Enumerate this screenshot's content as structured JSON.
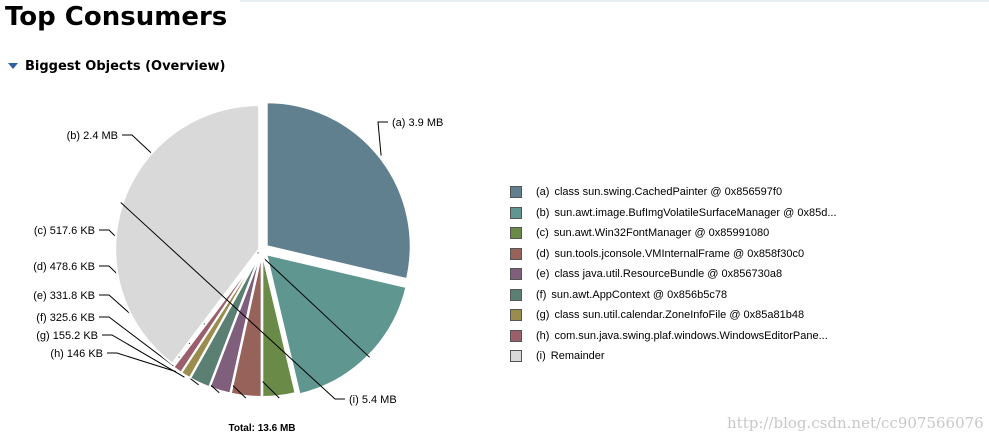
{
  "page": {
    "title": "Top Consumers"
  },
  "section": {
    "title": "Biggest Objects (Overview)"
  },
  "chart_data": {
    "type": "pie",
    "total": "Total: 13.6 MB",
    "slices": [
      {
        "id": "(a)",
        "label": "3.9 MB",
        "value": 3.9,
        "legend": "class sun.swing.CachedPainter @ 0x856597f0",
        "color": "#61808f"
      },
      {
        "id": "(b)",
        "label": "2.4 MB",
        "value": 2.4,
        "legend": "sun.awt.image.BufImgVolatileSurfaceManager @ 0x85d...",
        "color": "#5f9690"
      },
      {
        "id": "(c)",
        "label": "517.6 KB",
        "value": 0.5055,
        "legend": "sun.awt.Win32FontManager @ 0x85991080",
        "color": "#6a8a47"
      },
      {
        "id": "(d)",
        "label": "478.6 KB",
        "value": 0.4674,
        "legend": "sun.tools.jconsole.VMInternalFrame @ 0x858f30c0",
        "color": "#97625a"
      },
      {
        "id": "(e)",
        "label": "331.8 KB",
        "value": 0.324,
        "legend": "class java.util.ResourceBundle @ 0x856730a8",
        "color": "#805f7c"
      },
      {
        "id": "(f)",
        "label": "325.6 KB",
        "value": 0.318,
        "legend": "sun.awt.AppContext @ 0x856b5c78",
        "color": "#5b7f72"
      },
      {
        "id": "(g)",
        "label": "155.2 KB",
        "value": 0.1516,
        "legend": "class sun.util.calendar.ZoneInfoFile @ 0x85a81b48",
        "color": "#998c4c"
      },
      {
        "id": "(h)",
        "label": "146 KB",
        "value": 0.1426,
        "legend": "com.sun.java.swing.plaf.windows.WindowsEditorPane...",
        "color": "#9b5f6c"
      },
      {
        "id": "(i)",
        "label": "5.4 MB",
        "value": 5.4,
        "legend": "Remainder",
        "color": "#d9d9d9"
      }
    ]
  },
  "watermark": "http://blog.csdn.net/cc907566076"
}
